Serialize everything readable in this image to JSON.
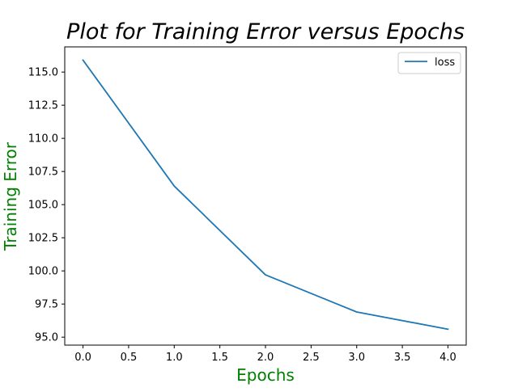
{
  "chart_data": {
    "type": "line",
    "title": "Plot for Training Error versus Epochs",
    "xlabel": "Epochs",
    "ylabel": "Training Error",
    "label_color": "#008000",
    "line_color": "#1f77b4",
    "xlim": [
      -0.2,
      4.2
    ],
    "ylim": [
      94.4,
      116.9
    ],
    "x_ticks": [
      "0.0",
      "0.5",
      "1.0",
      "1.5",
      "2.0",
      "2.5",
      "3.0",
      "3.5",
      "4.0"
    ],
    "y_ticks": [
      "95.0",
      "97.5",
      "100.0",
      "102.5",
      "105.0",
      "107.5",
      "110.0",
      "112.5",
      "115.0"
    ],
    "grid": false,
    "legend_position": "top-right",
    "series": [
      {
        "name": "loss",
        "x": [
          0,
          1,
          2,
          3,
          4
        ],
        "y": [
          115.9,
          106.4,
          99.7,
          96.9,
          95.6
        ]
      }
    ]
  }
}
